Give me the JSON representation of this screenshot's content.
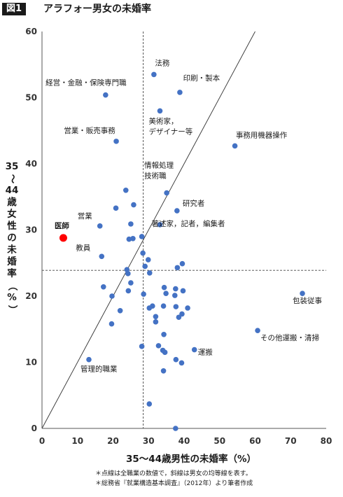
{
  "header": {
    "badge": "図1",
    "title": "アラフォー男女の未婚率"
  },
  "notes": [
    "＊点線は全職業の数値で，斜線は男女の均等線を表す。",
    "＊総務省『就業構造基本調査』（2012年）より筆者作成"
  ],
  "chart_data": {
    "type": "scatter",
    "title": "アラフォー男女の未婚率",
    "xlabel": "35〜44歳男性の未婚率（%）",
    "ylabel": "35〜44歳女性の未婚率（%）",
    "xlim": [
      0,
      80
    ],
    "ylim": [
      0,
      60
    ],
    "xticks": [
      0,
      10,
      20,
      30,
      40,
      50,
      60,
      70,
      80
    ],
    "yticks": [
      0,
      10,
      20,
      30,
      40,
      50,
      60
    ],
    "reference_lines": {
      "all_jobs_male": 28.5,
      "all_jobs_female": 23.9,
      "equality_line": true
    },
    "colors": {
      "points": "#4472c4",
      "highlight": "#ff0000",
      "highlight_label": "#ff0000"
    },
    "highlight": {
      "label": "医師",
      "x": 6,
      "y": 28.8
    },
    "points": [
      {
        "x": 31.5,
        "y": 53.5,
        "label": "法務"
      },
      {
        "x": 38.8,
        "y": 50.8,
        "label": "印刷・製本"
      },
      {
        "x": 17.9,
        "y": 50.4,
        "label": "経営・金融・保険専門職"
      },
      {
        "x": 33.2,
        "y": 48.0,
        "label": "美術家，デザイナー等"
      },
      {
        "x": 20.9,
        "y": 43.4,
        "label": "営業・販売事務"
      },
      {
        "x": 54.3,
        "y": 42.7,
        "label": "事務用機器操作"
      },
      {
        "x": 35.1,
        "y": 35.6,
        "label": "情報処理技術職"
      },
      {
        "x": 38.0,
        "y": 32.9,
        "label": "研究者"
      },
      {
        "x": 33.2,
        "y": 30.8,
        "label": "著述家，記者，編集者"
      },
      {
        "x": 16.3,
        "y": 30.6,
        "label": "営業"
      },
      {
        "x": 16.8,
        "y": 26.0,
        "label": "教員"
      },
      {
        "x": 73.3,
        "y": 20.4,
        "label": "包装従事"
      },
      {
        "x": 60.7,
        "y": 14.8,
        "label": "その他運搬・清掃"
      },
      {
        "x": 42.9,
        "y": 11.9,
        "label": "運搬"
      },
      {
        "x": 13.2,
        "y": 10.4,
        "label": "管理的職業"
      },
      {
        "x": 23.6,
        "y": 36.0
      },
      {
        "x": 20.8,
        "y": 33.3
      },
      {
        "x": 25.8,
        "y": 33.8
      },
      {
        "x": 25.0,
        "y": 30.9
      },
      {
        "x": 28.1,
        "y": 29.0
      },
      {
        "x": 24.5,
        "y": 28.6
      },
      {
        "x": 25.6,
        "y": 28.7
      },
      {
        "x": 28.4,
        "y": 26.5
      },
      {
        "x": 29.9,
        "y": 25.5
      },
      {
        "x": 29.0,
        "y": 24.5
      },
      {
        "x": 39.5,
        "y": 24.9
      },
      {
        "x": 38.1,
        "y": 24.3
      },
      {
        "x": 23.9,
        "y": 24.0
      },
      {
        "x": 24.2,
        "y": 23.4
      },
      {
        "x": 30.3,
        "y": 23.5
      },
      {
        "x": 25.0,
        "y": 22.0
      },
      {
        "x": 24.3,
        "y": 20.8
      },
      {
        "x": 17.3,
        "y": 21.4
      },
      {
        "x": 19.7,
        "y": 20.0
      },
      {
        "x": 28.6,
        "y": 20.3
      },
      {
        "x": 34.4,
        "y": 21.3
      },
      {
        "x": 34.9,
        "y": 20.4
      },
      {
        "x": 37.6,
        "y": 21.1
      },
      {
        "x": 39.7,
        "y": 20.8
      },
      {
        "x": 37.4,
        "y": 20.1
      },
      {
        "x": 30.2,
        "y": 18.2
      },
      {
        "x": 31.1,
        "y": 18.5
      },
      {
        "x": 34.2,
        "y": 18.5
      },
      {
        "x": 37.7,
        "y": 18.4
      },
      {
        "x": 41.0,
        "y": 18.2
      },
      {
        "x": 22.0,
        "y": 17.8
      },
      {
        "x": 32.0,
        "y": 16.9
      },
      {
        "x": 32.0,
        "y": 16.1
      },
      {
        "x": 38.5,
        "y": 16.8
      },
      {
        "x": 39.4,
        "y": 17.3
      },
      {
        "x": 19.6,
        "y": 15.8
      },
      {
        "x": 34.3,
        "y": 14.2
      },
      {
        "x": 28.1,
        "y": 12.4
      },
      {
        "x": 32.8,
        "y": 12.5
      },
      {
        "x": 34.0,
        "y": 11.8
      },
      {
        "x": 34.6,
        "y": 11.5
      },
      {
        "x": 37.7,
        "y": 10.4
      },
      {
        "x": 39.3,
        "y": 9.9
      },
      {
        "x": 34.2,
        "y": 8.7
      },
      {
        "x": 30.2,
        "y": 3.7
      },
      {
        "x": 37.6,
        "y": 0.0
      }
    ]
  }
}
